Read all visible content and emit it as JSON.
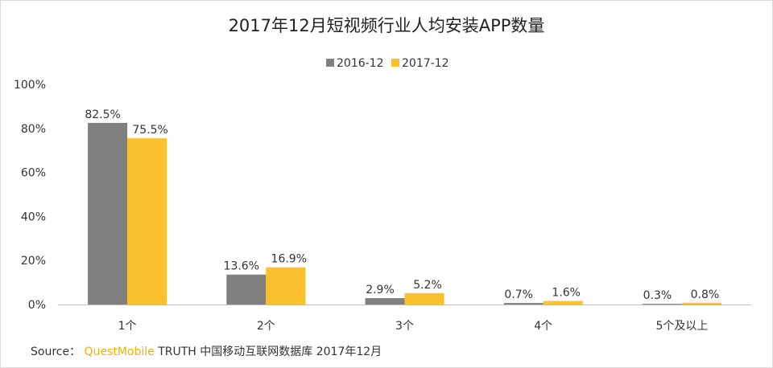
{
  "chart_data": {
    "type": "bar",
    "title": "2017年12月短视频行业人均安装APP数量",
    "categories": [
      "1个",
      "2个",
      "3个",
      "4个",
      "5个及以上"
    ],
    "series": [
      {
        "name": "2016-12",
        "color": "#808080",
        "values": [
          82.5,
          13.6,
          2.9,
          0.7,
          0.3
        ],
        "labels": [
          "82.5%",
          "13.6%",
          "2.9%",
          "0.7%",
          "0.3%"
        ]
      },
      {
        "name": "2017-12",
        "color": "#fbc02d",
        "values": [
          75.5,
          16.9,
          5.2,
          1.6,
          0.8
        ],
        "labels": [
          "75.5%",
          "16.9%",
          "5.2%",
          "1.6%",
          "0.8%"
        ]
      }
    ],
    "y_ticks": [
      "0%",
      "20%",
      "40%",
      "60%",
      "80%",
      "100%"
    ],
    "ylim": [
      0,
      100
    ],
    "legend_position": "top-center",
    "grid": false
  },
  "source": {
    "prefix": "Source： ",
    "brand": "QuestMobile",
    "rest": " TRUTH 中国移动互联网数据库 2017年12月"
  }
}
